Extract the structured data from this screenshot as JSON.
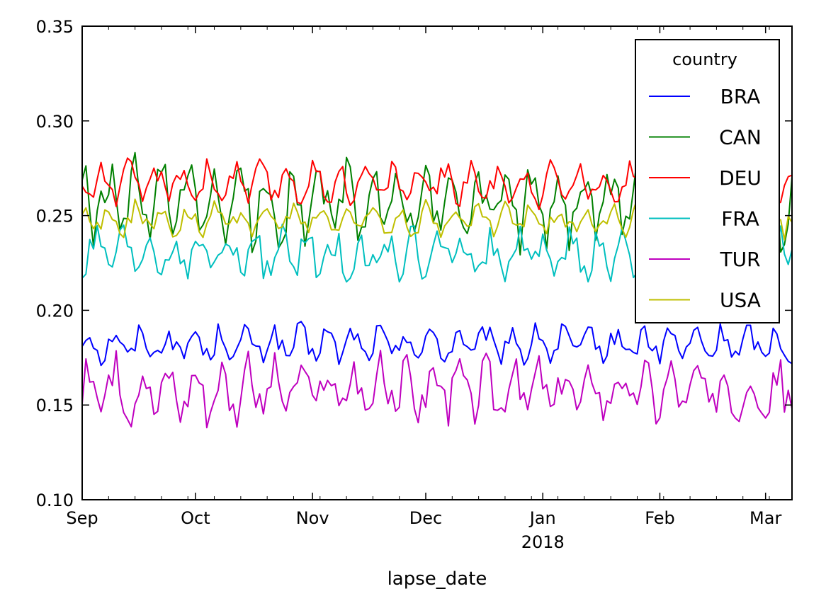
{
  "chart_data": {
    "type": "line",
    "xlabel": "lapse_date",
    "ylabel": "",
    "xlim": [
      "2017-09-01",
      "2018-03-08"
    ],
    "ylim": [
      0.1,
      0.35
    ],
    "y_ticks": [
      "0.10",
      "0.15",
      "0.20",
      "0.25",
      "0.30",
      "0.35"
    ],
    "x_ticks": [
      {
        "date": "2017-09-01",
        "label": "Sep",
        "sublabel": ""
      },
      {
        "date": "2017-10-01",
        "label": "Oct",
        "sublabel": ""
      },
      {
        "date": "2017-11-01",
        "label": "Nov",
        "sublabel": ""
      },
      {
        "date": "2017-12-01",
        "label": "Dec",
        "sublabel": ""
      },
      {
        "date": "2018-01-01",
        "label": "Jan",
        "sublabel": "2018"
      },
      {
        "date": "2018-02-01",
        "label": "Feb",
        "sublabel": ""
      },
      {
        "date": "2018-03-01",
        "label": "Mar",
        "sublabel": ""
      }
    ],
    "grid": false,
    "legend": {
      "title": "country",
      "placement": "top-right"
    },
    "series": [
      {
        "name": "BRA",
        "color": "#0000ff",
        "base": 0.182,
        "amp": 0.007,
        "noise": 0.006
      },
      {
        "name": "CAN",
        "color": "#008000",
        "base": 0.256,
        "amp": 0.016,
        "noise": 0.012
      },
      {
        "name": "DEU",
        "color": "#ff0000",
        "base": 0.267,
        "amp": 0.008,
        "noise": 0.006
      },
      {
        "name": "FRA",
        "color": "#00bfbf",
        "base": 0.229,
        "amp": 0.008,
        "noise": 0.009
      },
      {
        "name": "TUR",
        "color": "#bf00bf",
        "base": 0.158,
        "amp": 0.011,
        "noise": 0.01
      },
      {
        "name": "USA",
        "color": "#bfbf00",
        "base": 0.248,
        "amp": 0.006,
        "noise": 0.005
      }
    ]
  }
}
